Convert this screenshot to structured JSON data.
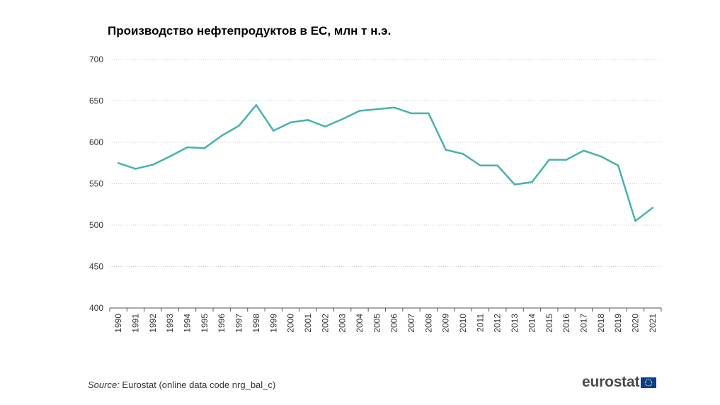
{
  "chart_data": {
    "type": "line",
    "title": "Производство нефтепродуктов в ЕС, млн т н.э.",
    "xlabel": "",
    "ylabel": "",
    "ylim": [
      400,
      700
    ],
    "yticks": [
      400,
      450,
      500,
      550,
      600,
      650,
      700
    ],
    "grid": true,
    "line_color": "#49b1ac",
    "categories": [
      "1990",
      "1991",
      "1992",
      "1993",
      "1994",
      "1995",
      "1996",
      "1997",
      "1998",
      "1999",
      "2000",
      "2001",
      "2002",
      "2003",
      "2004",
      "2005",
      "2006",
      "2007",
      "2008",
      "2009",
      "2010",
      "2011",
      "2012",
      "2013",
      "2014",
      "2015",
      "2016",
      "2017",
      "2018",
      "2019",
      "2020",
      "2021"
    ],
    "series": [
      {
        "values": [
          575,
          568,
          573,
          583,
          594,
          593,
          608,
          620,
          645,
          614,
          624,
          627,
          619,
          628,
          638,
          640,
          642,
          635,
          635,
          591,
          586,
          572,
          572,
          549,
          552,
          579,
          579,
          590,
          583,
          572,
          505,
          521
        ]
      }
    ]
  },
  "footer": {
    "source_label": "Source:",
    "source_text": " Eurostat (online data code nrg_bal_c)",
    "logo_text": "eurostat"
  }
}
